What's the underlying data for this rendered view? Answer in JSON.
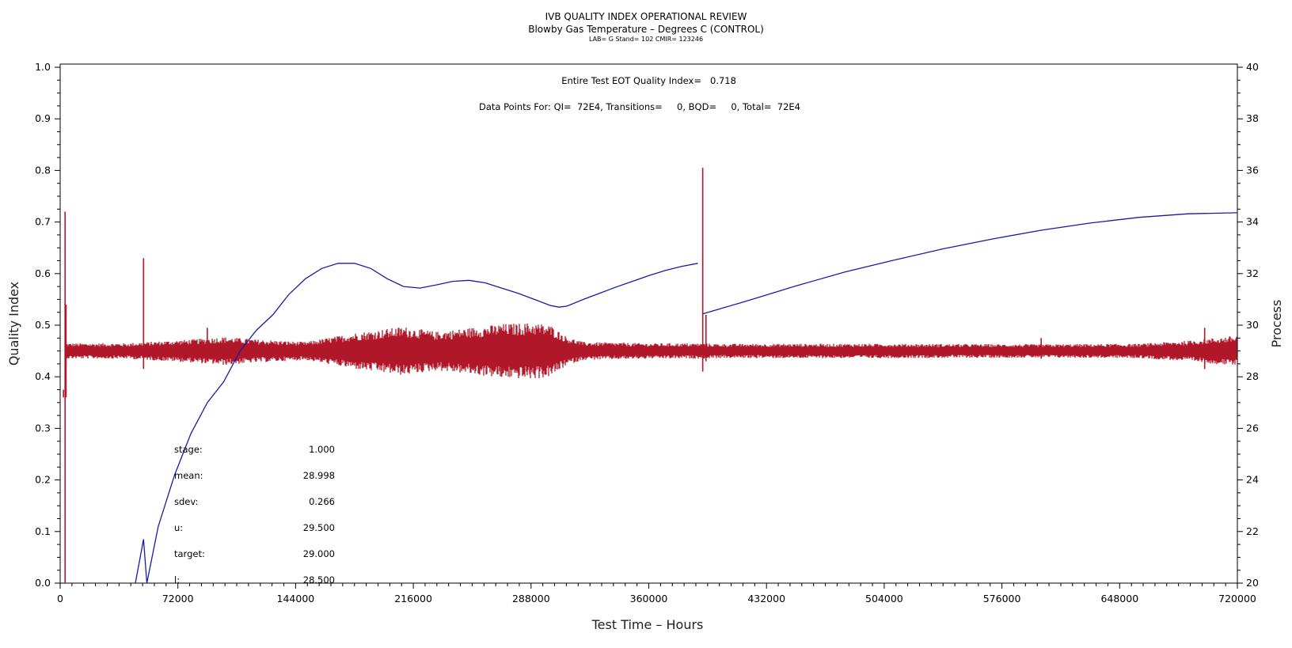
{
  "chart_data": {
    "type": "line",
    "title": "IVB QUALITY INDEX OPERATIONAL REVIEW",
    "subtitle": "Blowby Gas Temperature – Degrees C (CONTROL)",
    "subsubtitle": "LAB= G Stand= 102 CMIR= 123246",
    "xlabel": "Test Time – Hours",
    "ylabel_left": "Quality Index",
    "ylabel_right": "Process",
    "xlim": [
      0,
      720000
    ],
    "ylim_left": [
      0,
      1.0
    ],
    "ylim_right": [
      20,
      40
    ],
    "x_ticks": [
      0,
      72000,
      144000,
      216000,
      288000,
      360000,
      432000,
      504000,
      576000,
      648000,
      720000
    ],
    "y_ticks_left": [
      0.0,
      0.1,
      0.2,
      0.3,
      0.4,
      0.5,
      0.6,
      0.7,
      0.8,
      0.9,
      1.0
    ],
    "y_ticks_right": [
      20,
      22,
      24,
      26,
      28,
      30,
      32,
      34,
      36,
      38,
      40
    ],
    "grid": false,
    "annotations": {
      "eot_label": "Entire Test EOT Quality Index=",
      "eot_value": "0.718",
      "datapoints_text": "Data Points For: QI=  72E4, Transitions=     0, BQD=     0, Total=  72E4"
    },
    "stats": [
      {
        "label": "stage:",
        "value": "1.000"
      },
      {
        "label": "mean:",
        "value": "28.998"
      },
      {
        "label": "sdev:",
        "value": "0.266"
      },
      {
        "label": "u:",
        "value": "29.500"
      },
      {
        "label": "target:",
        "value": "29.000"
      },
      {
        "label": "l:",
        "value": "28.500"
      }
    ],
    "series": [
      {
        "axis": "left",
        "color": "#1a1aa6",
        "segments": [
          {
            "x": [
              46000,
              51000
            ],
            "y": [
              0.0,
              0.085
            ]
          },
          {
            "x": [
              51000,
              53000,
              60000,
              70000,
              80000,
              90000,
              100000,
              110000,
              120000,
              130000,
              140000,
              150000,
              160000,
              170000,
              180000,
              190000,
              200000,
              210000,
              220000,
              230000,
              240000,
              250000,
              260000,
              270000,
              280000,
              290000,
              300000,
              305000,
              310000,
              320000,
              330000,
              340000,
              350000,
              360000,
              370000,
              380000,
              390000
            ],
            "y": [
              0.085,
              0.0,
              0.11,
              0.21,
              0.29,
              0.35,
              0.39,
              0.45,
              0.49,
              0.52,
              0.56,
              0.59,
              0.61,
              0.62,
              0.62,
              0.61,
              0.59,
              0.575,
              0.572,
              0.578,
              0.585,
              0.587,
              0.582,
              0.572,
              0.562,
              0.55,
              0.538,
              0.535,
              0.537,
              0.55,
              0.562,
              0.574,
              0.585,
              0.596,
              0.606,
              0.614,
              0.62
            ]
          },
          {
            "x": [
              393000,
              420000,
              450000,
              480000,
              510000,
              540000,
              570000,
              600000,
              630000,
              660000,
              690000,
              720000
            ],
            "y": [
              0.522,
              0.547,
              0.576,
              0.603,
              0.626,
              0.648,
              0.667,
              0.684,
              0.698,
              0.709,
              0.716,
              0.718
            ]
          }
        ]
      },
      {
        "axis": "right",
        "color": "#b0182a",
        "baseline": 29.0,
        "envelope_x": [
          0,
          40000,
          80000,
          100000,
          120000,
          150000,
          180000,
          210000,
          230000,
          250000,
          270000,
          290000,
          300000,
          310000,
          320000,
          360000,
          390000,
          400000,
          500000,
          600000,
          660000,
          690000,
          720000
        ],
        "envelope_half": [
          0.3,
          0.3,
          0.45,
          0.55,
          0.45,
          0.35,
          0.7,
          0.95,
          0.75,
          0.9,
          1.05,
          1.1,
          1.0,
          0.55,
          0.35,
          0.3,
          0.3,
          0.28,
          0.28,
          0.26,
          0.28,
          0.4,
          0.6
        ],
        "spikes": [
          {
            "x": 2000,
            "y_low": 27.2,
            "y_high": 27.5
          },
          {
            "x": 3000,
            "y_low": 20.0,
            "y_high": 34.4
          },
          {
            "x": 3600,
            "y_low": 27.2,
            "y_high": 30.8
          },
          {
            "x": 51000,
            "y_low": 28.3,
            "y_high": 32.6
          },
          {
            "x": 90000,
            "y_low": 28.6,
            "y_high": 29.9
          },
          {
            "x": 270000,
            "y_low": 28.0,
            "y_high": 29.9
          },
          {
            "x": 393000,
            "y_low": 28.2,
            "y_high": 36.1
          },
          {
            "x": 395000,
            "y_low": 28.6,
            "y_high": 30.4
          },
          {
            "x": 600000,
            "y_low": 28.7,
            "y_high": 29.5
          },
          {
            "x": 700000,
            "y_low": 28.3,
            "y_high": 29.9
          }
        ]
      }
    ]
  }
}
